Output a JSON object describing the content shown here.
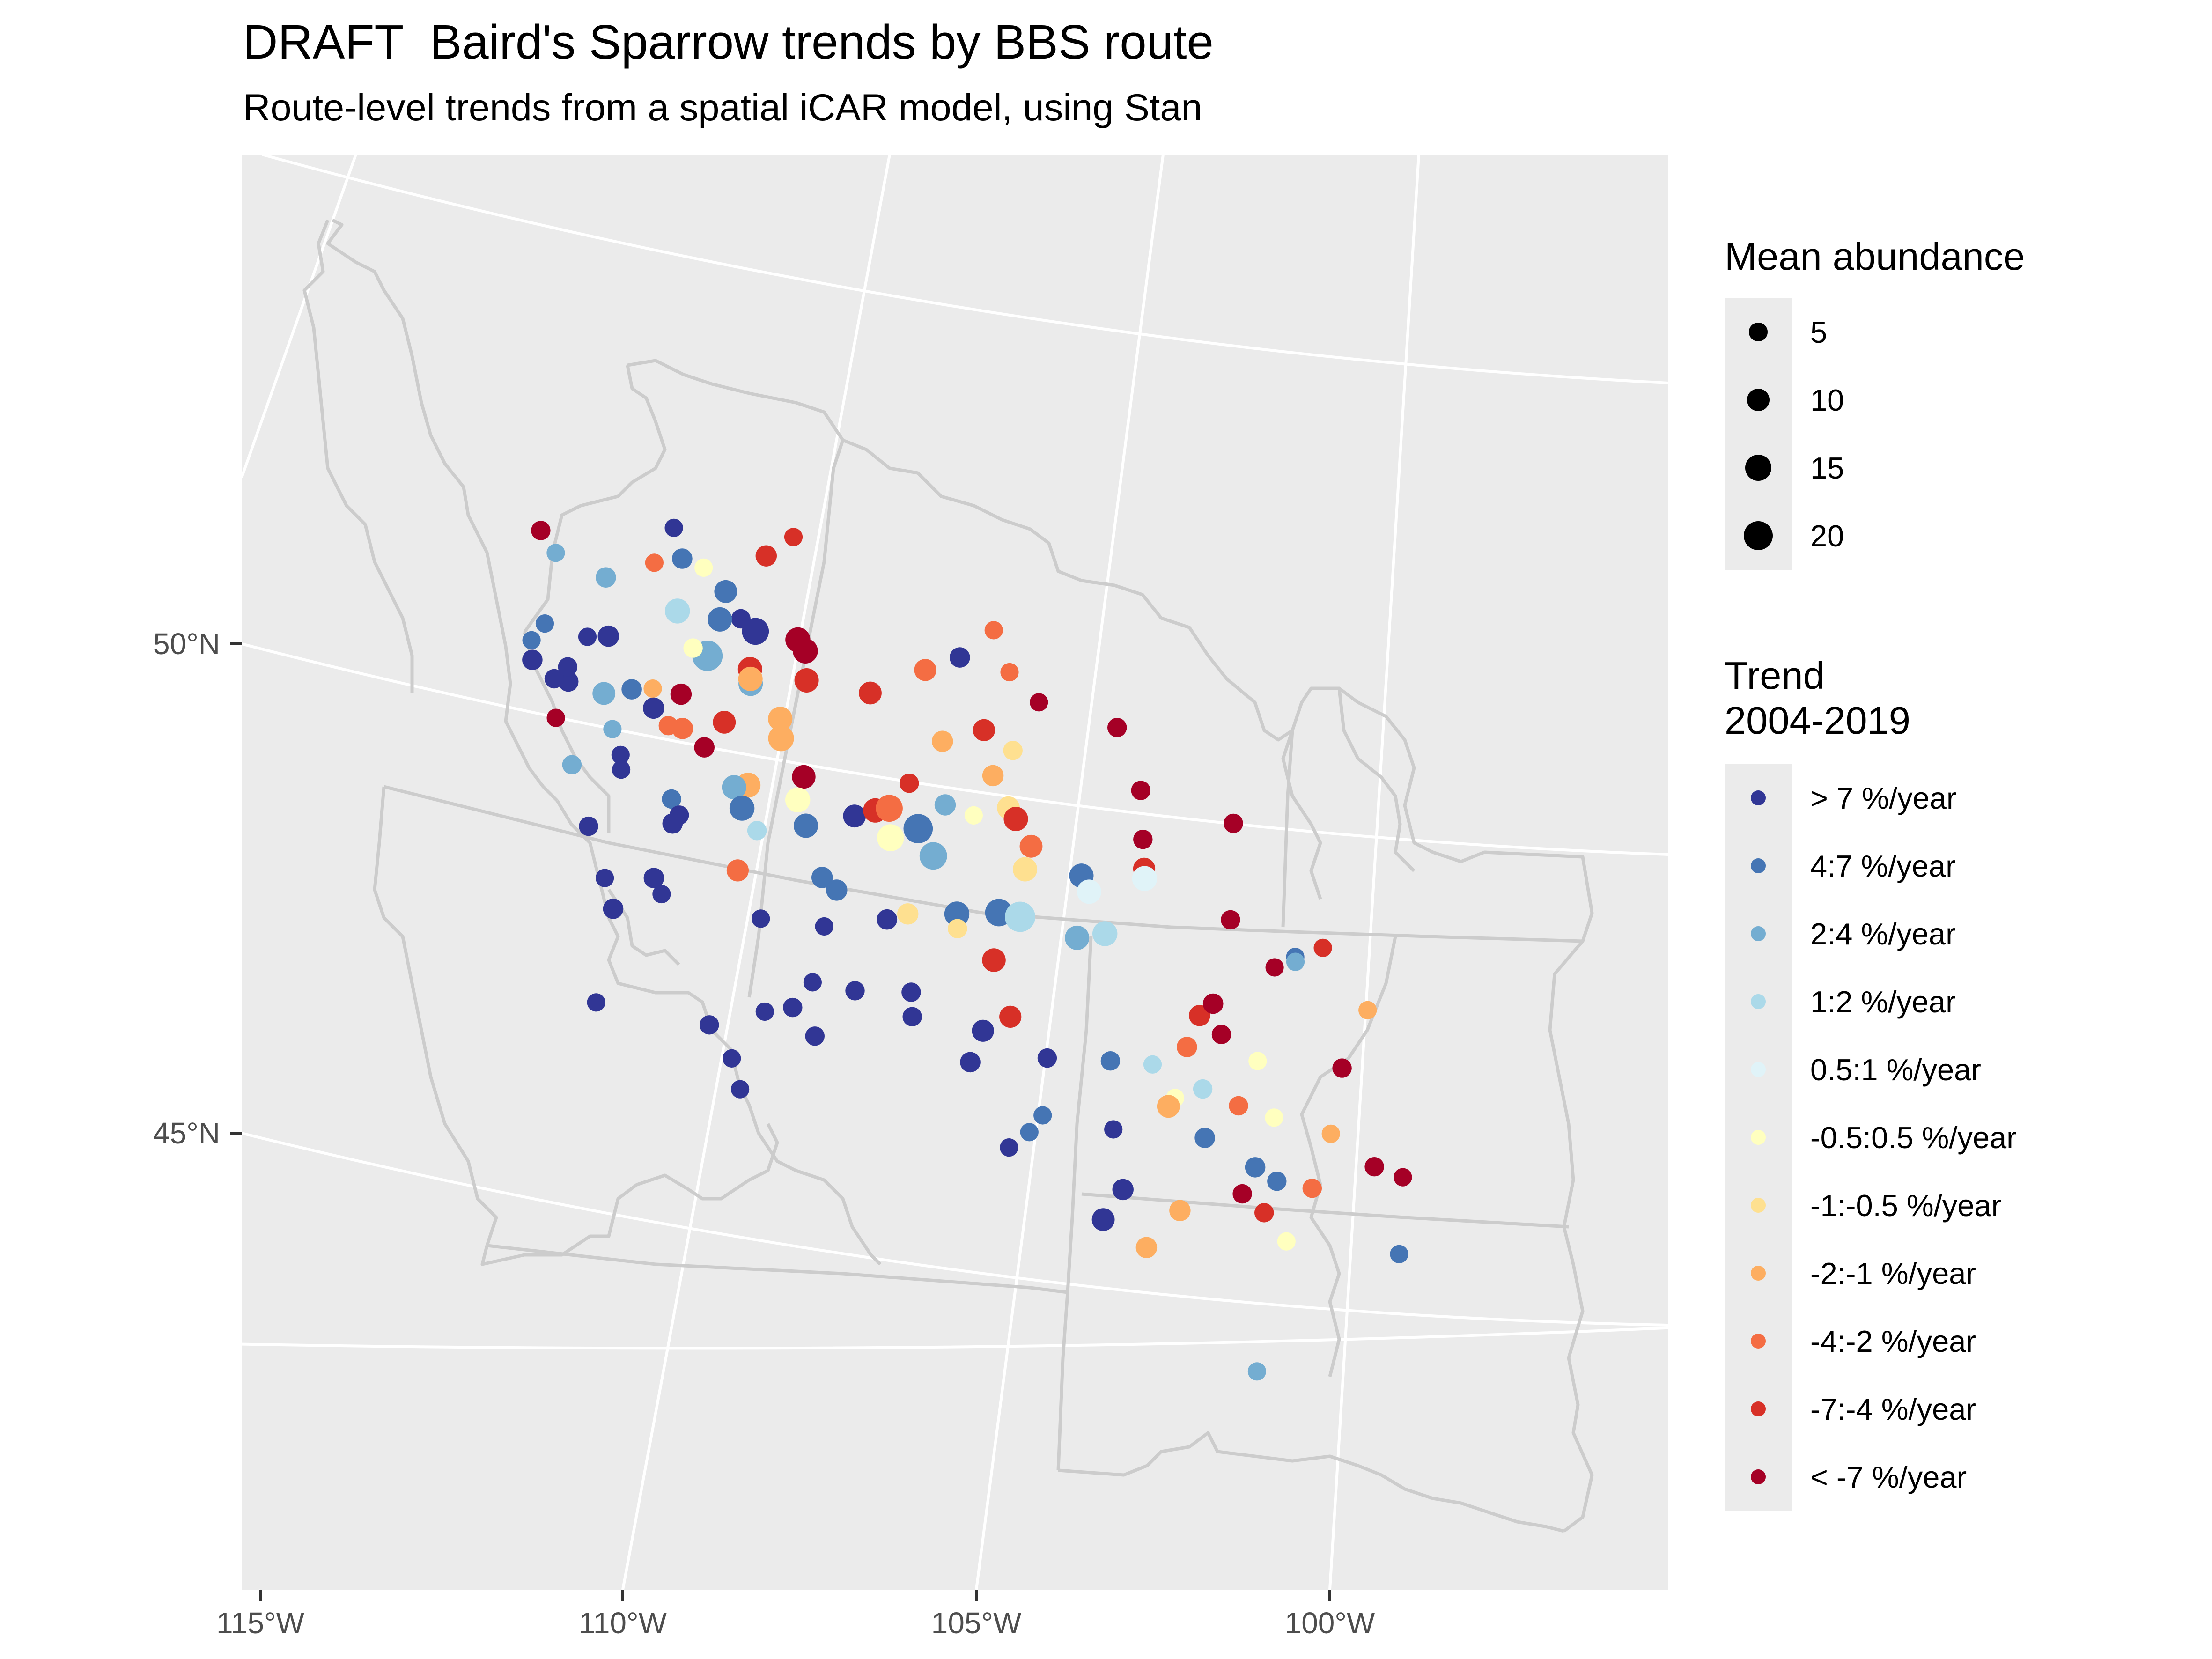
{
  "title": "DRAFT  Baird's Sparrow trends by BBS route",
  "subtitle": "Route-level trends from a spatial iCAR model, using Stan",
  "axes": {
    "x_labels": [
      "115°W",
      "110°W",
      "105°W",
      "100°W"
    ],
    "y_labels": [
      "50°N",
      "45°N"
    ]
  },
  "colors": {
    "panel": "#ebebeb",
    "grid": "#ffffff",
    "boundary": "#cccccc"
  },
  "legend_abundance": {
    "title": "Mean abundance",
    "items": [
      {
        "label": "5",
        "value": 5
      },
      {
        "label": "10",
        "value": 10
      },
      {
        "label": "15",
        "value": 15
      },
      {
        "label": "20",
        "value": 20
      }
    ]
  },
  "legend_trend": {
    "title": "Trend\n2004-2019",
    "items": [
      {
        "label": "> 7 %/year",
        "color": "#313695"
      },
      {
        "label": "4:7 %/year",
        "color": "#4575b4"
      },
      {
        "label": "2:4 %/year",
        "color": "#74add1"
      },
      {
        "label": "1:2 %/year",
        "color": "#abd9e9"
      },
      {
        "label": "0.5:1 %/year",
        "color": "#e0f3f8"
      },
      {
        "label": "-0.5:0.5 %/year",
        "color": "#ffffbf"
      },
      {
        "label": "-1:-0.5 %/year",
        "color": "#fee090"
      },
      {
        "label": "-2:-1 %/year",
        "color": "#fdae61"
      },
      {
        "label": "-4:-2 %/year",
        "color": "#f46d43"
      },
      {
        "label": "-7:-4 %/year",
        "color": "#d73027"
      },
      {
        "label": "< -7 %/year",
        "color": "#a50026"
      }
    ]
  },
  "routes": [
    {
      "lon": -109.2,
      "lat": 51.3,
      "c": 0,
      "a": 5
    },
    {
      "lon": -109.1,
      "lat": 51.0,
      "c": 1,
      "a": 7
    },
    {
      "lon": -108.8,
      "lat": 50.95,
      "c": 5,
      "a": 5
    },
    {
      "lon": -108.5,
      "lat": 50.75,
      "c": 1,
      "a": 10
    },
    {
      "lon": -108.3,
      "lat": 50.5,
      "c": 0,
      "a": 6
    },
    {
      "lon": -108.6,
      "lat": 50.45,
      "c": 1,
      "a": 12
    },
    {
      "lon": -108.1,
      "lat": 50.4,
      "c": 0,
      "a": 16
    },
    {
      "lon": -108.8,
      "lat": 50.05,
      "c": 2,
      "a": 22
    },
    {
      "lon": -108.2,
      "lat": 50.0,
      "c": 9,
      "a": 12
    },
    {
      "lon": -108.2,
      "lat": 49.85,
      "c": 2,
      "a": 12
    },
    {
      "lon": -108.2,
      "lat": 49.9,
      "c": 7,
      "a": 12
    },
    {
      "lon": -107.9,
      "lat": 51.2,
      "c": 9,
      "a": 8
    },
    {
      "lon": -107.5,
      "lat": 51.45,
      "c": 9,
      "a": 5
    },
    {
      "lon": -109.5,
      "lat": 50.9,
      "c": 8,
      "a": 5
    },
    {
      "lon": -109.2,
      "lat": 50.45,
      "c": 3,
      "a": 13
    },
    {
      "lon": -109.0,
      "lat": 50.1,
      "c": 5,
      "a": 6
    },
    {
      "lon": -107.5,
      "lat": 50.4,
      "c": 10,
      "a": 13
    },
    {
      "lon": -107.4,
      "lat": 50.3,
      "c": 10,
      "a": 13
    },
    {
      "lon": -107.4,
      "lat": 50.0,
      "c": 9,
      "a": 12
    },
    {
      "lon": -107.8,
      "lat": 49.55,
      "c": 7,
      "a": 12
    },
    {
      "lon": -107.8,
      "lat": 49.35,
      "c": 7,
      "a": 14
    },
    {
      "lon": -107.5,
      "lat": 49.0,
      "c": 10,
      "a": 11
    },
    {
      "lon": -107.6,
      "lat": 48.75,
      "c": 5,
      "a": 13
    },
    {
      "lon": -108.3,
      "lat": 48.8,
      "c": 7,
      "a": 13
    },
    {
      "lon": -108.6,
      "lat": 49.4,
      "c": 9,
      "a": 10
    },
    {
      "lon": -108.9,
      "lat": 49.1,
      "c": 10,
      "a": 7
    },
    {
      "lon": -109.2,
      "lat": 49.25,
      "c": 8,
      "a": 8
    },
    {
      "lon": -109.4,
      "lat": 49.25,
      "c": 8,
      "a": 6
    },
    {
      "lon": -109.2,
      "lat": 49.6,
      "c": 10,
      "a": 8
    },
    {
      "lon": -109.6,
      "lat": 49.6,
      "c": 7,
      "a": 5
    },
    {
      "lon": -109.9,
      "lat": 49.55,
      "c": 1,
      "a": 7
    },
    {
      "lon": -109.6,
      "lat": 49.4,
      "c": 0,
      "a": 8
    },
    {
      "lon": -110.3,
      "lat": 49.45,
      "c": 2,
      "a": 10
    },
    {
      "lon": -110.8,
      "lat": 49.5,
      "c": 0,
      "a": 7
    },
    {
      "lon": -111.0,
      "lat": 49.5,
      "c": 0,
      "a": 6
    },
    {
      "lon": -111.3,
      "lat": 49.65,
      "c": 0,
      "a": 7
    },
    {
      "lon": -111.1,
      "lat": 50.05,
      "c": 1,
      "a": 5
    },
    {
      "lon": -111.3,
      "lat": 49.85,
      "c": 1,
      "a": 5
    },
    {
      "lon": -110.8,
      "lat": 49.65,
      "c": 0,
      "a": 6
    },
    {
      "lon": -110.5,
      "lat": 50.0,
      "c": 0,
      "a": 5
    },
    {
      "lon": -110.2,
      "lat": 50.05,
      "c": 0,
      "a": 8
    },
    {
      "lon": -110.2,
      "lat": 50.65,
      "c": 2,
      "a": 7
    },
    {
      "lon": -110.9,
      "lat": 50.8,
      "c": 2,
      "a": 5
    },
    {
      "lon": -111.1,
      "lat": 51.0,
      "c": 10,
      "a": 6
    },
    {
      "lon": -111.0,
      "lat": 49.1,
      "c": 10,
      "a": 5
    },
    {
      "lon": -110.2,
      "lat": 49.1,
      "c": 2,
      "a": 5
    },
    {
      "lon": -110.1,
      "lat": 48.85,
      "c": 0,
      "a": 5
    },
    {
      "lon": -110.1,
      "lat": 48.7,
      "c": 0,
      "a": 5
    },
    {
      "lon": -110.8,
      "lat": 48.65,
      "c": 2,
      "a": 6
    },
    {
      "lon": -109.4,
      "lat": 48.5,
      "c": 1,
      "a": 6
    },
    {
      "lon": -109.3,
      "lat": 48.35,
      "c": 0,
      "a": 6
    },
    {
      "lon": -109.4,
      "lat": 48.25,
      "c": 0,
      "a": 7
    },
    {
      "lon": -110.6,
      "lat": 48.05,
      "c": 0,
      "a": 6
    },
    {
      "lon": -108.5,
      "lat": 48.75,
      "c": 2,
      "a": 12
    },
    {
      "lon": -108.4,
      "lat": 48.55,
      "c": 1,
      "a": 13
    },
    {
      "lon": -107.5,
      "lat": 48.5,
      "c": 1,
      "a": 12
    },
    {
      "lon": -106.8,
      "lat": 48.7,
      "c": 0,
      "a": 10
    },
    {
      "lon": -106.5,
      "lat": 48.8,
      "c": 9,
      "a": 12
    },
    {
      "lon": -106.3,
      "lat": 48.85,
      "c": 8,
      "a": 16
    },
    {
      "lon": -105.9,
      "lat": 48.7,
      "c": 1,
      "a": 20
    },
    {
      "lon": -106.3,
      "lat": 48.55,
      "c": 5,
      "a": 16
    },
    {
      "lon": -105.7,
      "lat": 48.45,
      "c": 2,
      "a": 17
    },
    {
      "lon": -106.0,
      "lat": 49.15,
      "c": 9,
      "a": 6
    },
    {
      "lon": -105.5,
      "lat": 49.0,
      "c": 2,
      "a": 8
    },
    {
      "lon": -105.1,
      "lat": 48.95,
      "c": 5,
      "a": 5
    },
    {
      "lon": -104.6,
      "lat": 49.1,
      "c": 6,
      "a": 10
    },
    {
      "lon": -104.5,
      "lat": 49.0,
      "c": 9,
      "a": 12
    },
    {
      "lon": -104.8,
      "lat": 49.4,
      "c": 7,
      "a": 8
    },
    {
      "lon": -104.3,
      "lat": 48.75,
      "c": 8,
      "a": 10
    },
    {
      "lon": -104.4,
      "lat": 48.5,
      "c": 6,
      "a": 12
    },
    {
      "lon": -103.6,
      "lat": 48.55,
      "c": 1,
      "a": 12
    },
    {
      "lon": -103.5,
      "lat": 48.4,
      "c": 4,
      "a": 12
    },
    {
      "lon": -102.7,
      "lat": 48.75,
      "c": 9,
      "a": 9
    },
    {
      "lon": -102.7,
      "lat": 48.65,
      "c": 4,
      "a": 13
    },
    {
      "lon": -101.5,
      "lat": 48.4,
      "c": 10,
      "a": 6
    },
    {
      "lon": -100.2,
      "lat": 48.3,
      "c": 9,
      "a": 5
    },
    {
      "lon": -100.6,
      "lat": 48.15,
      "c": 1,
      "a": 5
    },
    {
      "lon": -100.6,
      "lat": 48.1,
      "c": 2,
      "a": 5
    },
    {
      "lon": -100.9,
      "lat": 48.0,
      "c": 10,
      "a": 5
    },
    {
      "lon": -99.6,
      "lat": 47.75,
      "c": 7,
      "a": 5
    },
    {
      "lon": -104.8,
      "lat": 48.0,
      "c": 1,
      "a": 17
    },
    {
      "lon": -104.5,
      "lat": 48.0,
      "c": 3,
      "a": 22
    },
    {
      "lon": -105.4,
      "lat": 47.9,
      "c": 1,
      "a": 13
    },
    {
      "lon": -103.7,
      "lat": 47.9,
      "c": 2,
      "a": 12
    },
    {
      "lon": -103.3,
      "lat": 48.0,
      "c": 3,
      "a": 13
    },
    {
      "lon": -107.3,
      "lat": 48.0,
      "c": 1,
      "a": 8
    },
    {
      "lon": -107.1,
      "lat": 47.9,
      "c": 1,
      "a": 8
    },
    {
      "lon": -106.4,
      "lat": 47.7,
      "c": 0,
      "a": 7
    },
    {
      "lon": -106.1,
      "lat": 47.8,
      "c": 6,
      "a": 8
    },
    {
      "lon": -105.4,
      "lat": 47.75,
      "c": 6,
      "a": 6
    },
    {
      "lon": -104.9,
      "lat": 47.5,
      "c": 9,
      "a": 11
    },
    {
      "lon": -107.3,
      "lat": 47.5,
      "c": 0,
      "a": 5
    },
    {
      "lon": -108.5,
      "lat": 47.9,
      "c": 8,
      "a": 9
    },
    {
      "lon": -108.2,
      "lat": 48.35,
      "c": 3,
      "a": 6
    },
    {
      "lon": -109.7,
      "lat": 47.65,
      "c": 0,
      "a": 7
    },
    {
      "lon": -109.6,
      "lat": 47.5,
      "c": 0,
      "a": 5
    },
    {
      "lon": -110.4,
      "lat": 47.55,
      "c": 0,
      "a": 5
    },
    {
      "lon": -110.3,
      "lat": 47.25,
      "c": 0,
      "a": 7
    },
    {
      "lon": -108.2,
      "lat": 47.45,
      "c": 0,
      "a": 5
    },
    {
      "lon": -107.5,
      "lat": 46.9,
      "c": 0,
      "a": 5
    },
    {
      "lon": -106.9,
      "lat": 46.9,
      "c": 0,
      "a": 6
    },
    {
      "lon": -106.1,
      "lat": 47.0,
      "c": 0,
      "a": 6
    },
    {
      "lon": -106.1,
      "lat": 46.75,
      "c": 0,
      "a": 6
    },
    {
      "lon": -105.1,
      "lat": 46.75,
      "c": 0,
      "a": 9
    },
    {
      "lon": -104.7,
      "lat": 46.95,
      "c": 9,
      "a": 9
    },
    {
      "lon": -104.2,
      "lat": 46.6,
      "c": 0,
      "a": 6
    },
    {
      "lon": -105.3,
      "lat": 46.4,
      "c": 0,
      "a": 7
    },
    {
      "lon": -107.8,
      "lat": 46.6,
      "c": 0,
      "a": 6
    },
    {
      "lon": -108.2,
      "lat": 46.5,
      "c": 0,
      "a": 5
    },
    {
      "lon": -107.5,
      "lat": 46.35,
      "c": 0,
      "a": 6
    },
    {
      "lon": -109.0,
      "lat": 46.25,
      "c": 0,
      "a": 6
    },
    {
      "lon": -110.6,
      "lat": 46.25,
      "c": 0,
      "a": 5
    },
    {
      "lon": -108.7,
      "lat": 45.95,
      "c": 0,
      "a": 5
    },
    {
      "lon": -108.6,
      "lat": 45.65,
      "c": 0,
      "a": 5
    },
    {
      "lon": -104.8,
      "lat": 45.6,
      "c": 0,
      "a": 5
    },
    {
      "lon": -104.5,
      "lat": 45.8,
      "c": 1,
      "a": 5
    },
    {
      "lon": -104.3,
      "lat": 46.0,
      "c": 1,
      "a": 5
    },
    {
      "lon": -103.3,
      "lat": 46.0,
      "c": 0,
      "a": 5
    },
    {
      "lon": -103.3,
      "lat": 46.7,
      "c": 1,
      "a": 6
    },
    {
      "lon": -102.7,
      "lat": 46.75,
      "c": 3,
      "a": 5
    },
    {
      "lon": -102.4,
      "lat": 46.45,
      "c": 5,
      "a": 5
    },
    {
      "lon": -102.0,
      "lat": 46.6,
      "c": 3,
      "a": 6
    },
    {
      "lon": -102.5,
      "lat": 46.35,
      "c": 7,
      "a": 10
    },
    {
      "lon": -101.5,
      "lat": 46.5,
      "c": 8,
      "a": 6
    },
    {
      "lon": -101.0,
      "lat": 46.45,
      "c": 5,
      "a": 5
    },
    {
      "lon": -100.2,
      "lat": 46.4,
      "c": 7,
      "a": 5
    },
    {
      "lon": -102.0,
      "lat": 47.35,
      "c": 9,
      "a": 8
    },
    {
      "lon": -101.8,
      "lat": 47.5,
      "c": 10,
      "a": 7
    },
    {
      "lon": -101.7,
      "lat": 47.2,
      "c": 10,
      "a": 6
    },
    {
      "lon": -101.2,
      "lat": 47.0,
      "c": 5,
      "a": 5
    },
    {
      "lon": -100.0,
      "lat": 47.1,
      "c": 10,
      "a": 6
    },
    {
      "lon": -102.2,
      "lat": 47.0,
      "c": 8,
      "a": 7
    },
    {
      "lon": -102.0,
      "lat": 46.1,
      "c": 1,
      "a": 7
    },
    {
      "lon": -101.3,
      "lat": 45.9,
      "c": 1,
      "a": 7
    },
    {
      "lon": -101.0,
      "lat": 45.8,
      "c": 1,
      "a": 6
    },
    {
      "lon": -100.5,
      "lat": 45.8,
      "c": 8,
      "a": 6
    },
    {
      "lon": -101.5,
      "lat": 45.6,
      "c": 10,
      "a": 6
    },
    {
      "lon": -101.2,
      "lat": 45.45,
      "c": 9,
      "a": 6
    },
    {
      "lon": -100.9,
      "lat": 45.2,
      "c": 5,
      "a": 5
    },
    {
      "lon": -103.2,
      "lat": 45.4,
      "c": 0,
      "a": 8
    },
    {
      "lon": -103.5,
      "lat": 45.05,
      "c": 0,
      "a": 10
    },
    {
      "lon": -102.4,
      "lat": 45.3,
      "c": 7,
      "a": 8
    },
    {
      "lon": -102.9,
      "lat": 44.85,
      "c": 7,
      "a": 8
    },
    {
      "lon": -99.6,
      "lat": 46.15,
      "c": 10,
      "a": 6
    },
    {
      "lon": -99.2,
      "lat": 46.1,
      "c": 10,
      "a": 5
    },
    {
      "lon": -99.3,
      "lat": 45.3,
      "c": 1,
      "a": 5
    },
    {
      "lon": -101.4,
      "lat": 43.8,
      "c": 2,
      "a": 5
    },
    {
      "lon": -104.7,
      "lat": 50.9,
      "c": 8,
      "a": 5
    },
    {
      "lon": -105.2,
      "lat": 50.55,
      "c": 0,
      "a": 7
    },
    {
      "lon": -104.5,
      "lat": 50.5,
      "c": 8,
      "a": 5
    },
    {
      "lon": -105.7,
      "lat": 50.35,
      "c": 8,
      "a": 9
    },
    {
      "lon": -104.1,
      "lat": 50.25,
      "c": 10,
      "a": 5
    },
    {
      "lon": -103.0,
      "lat": 50.15,
      "c": 10,
      "a": 6
    },
    {
      "lon": -106.5,
      "lat": 50.0,
      "c": 9,
      "a": 10
    },
    {
      "lon": -104.9,
      "lat": 49.85,
      "c": 9,
      "a": 9
    },
    {
      "lon": -105.5,
      "lat": 49.65,
      "c": 7,
      "a": 8
    },
    {
      "lon": -104.5,
      "lat": 49.7,
      "c": 6,
      "a": 6
    },
    {
      "lon": -102.7,
      "lat": 49.55,
      "c": 10,
      "a": 6
    },
    {
      "lon": -101.4,
      "lat": 49.4,
      "c": 10,
      "a": 6
    },
    {
      "lon": -102.7,
      "lat": 49.05,
      "c": 10,
      "a": 6
    }
  ]
}
